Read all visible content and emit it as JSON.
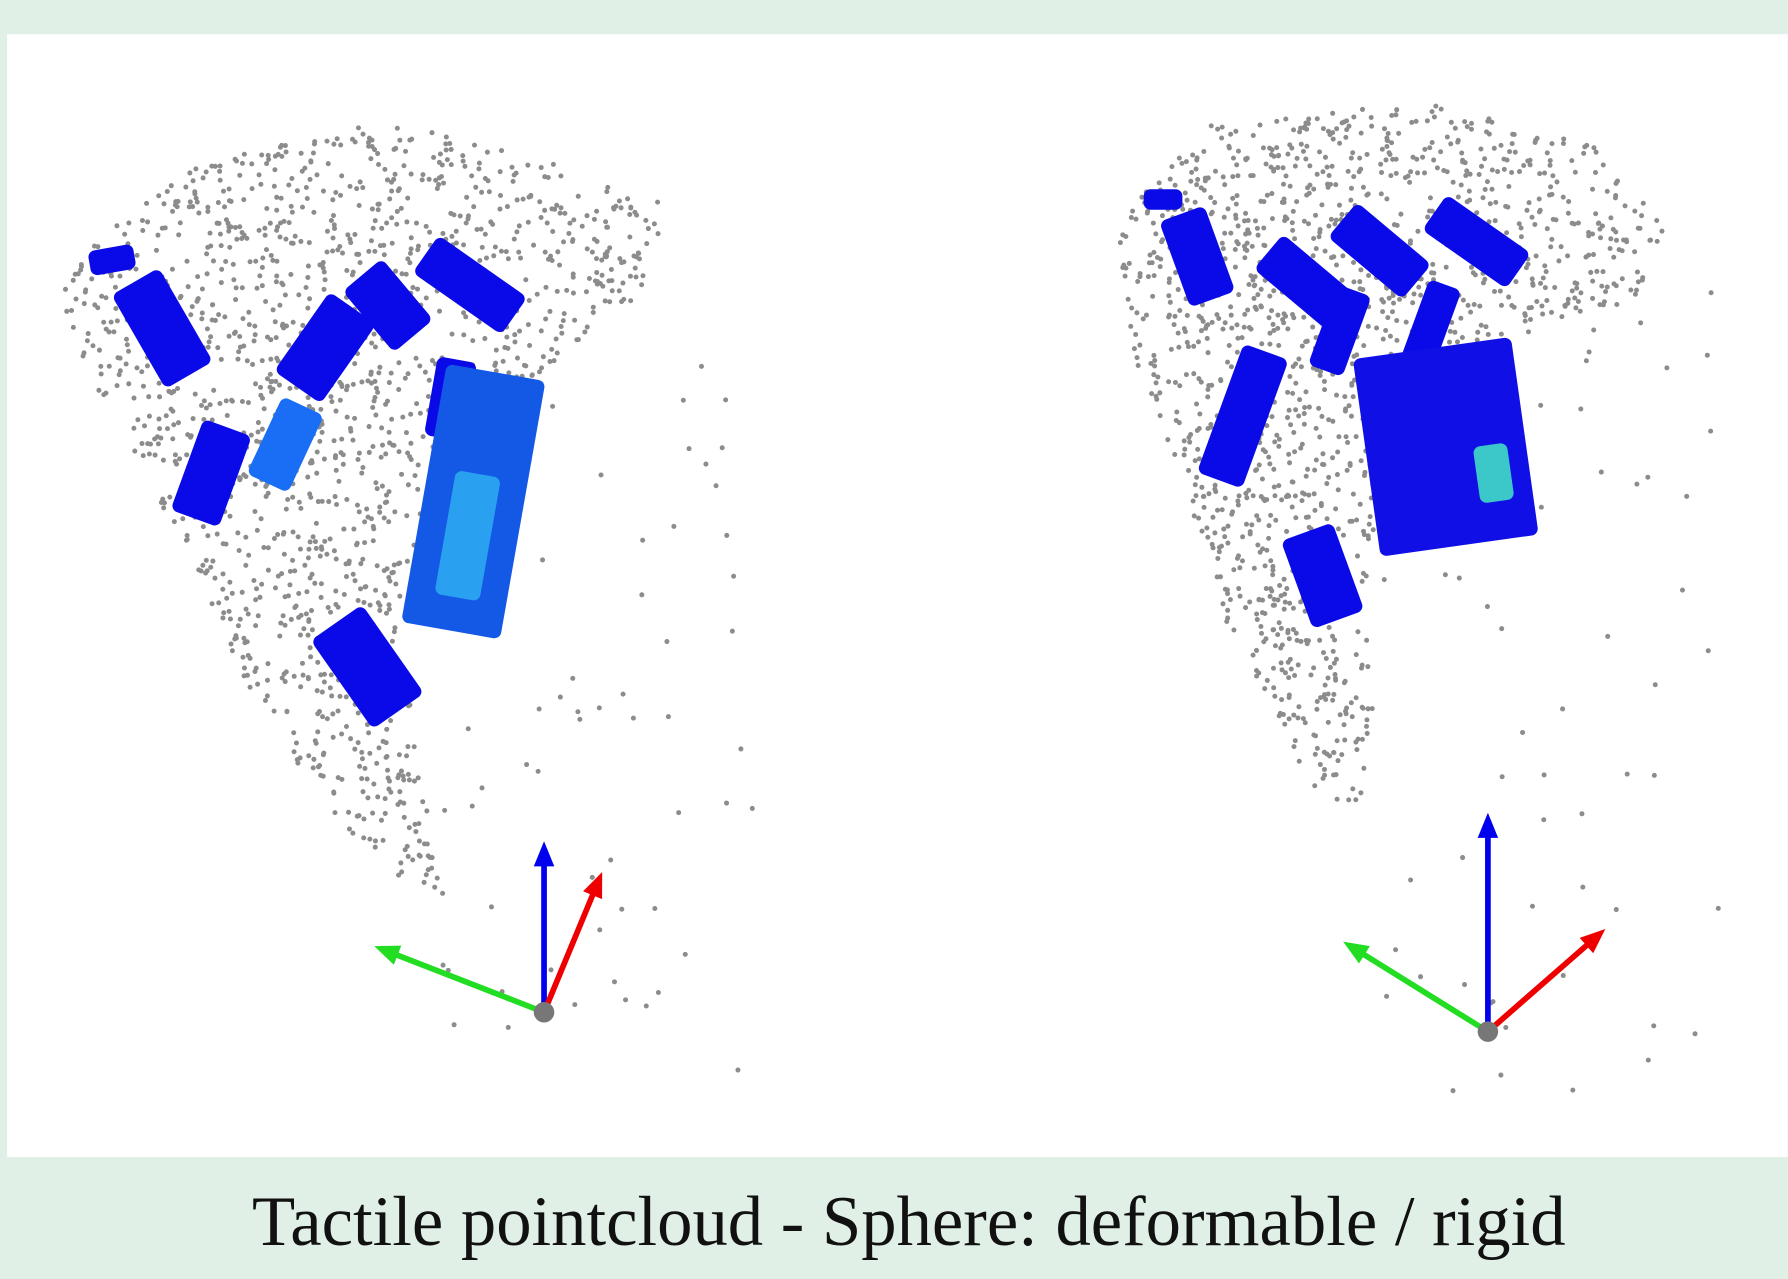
{
  "caption": "Tactile pointcloud - Sphere: deformable / rigid"
}
